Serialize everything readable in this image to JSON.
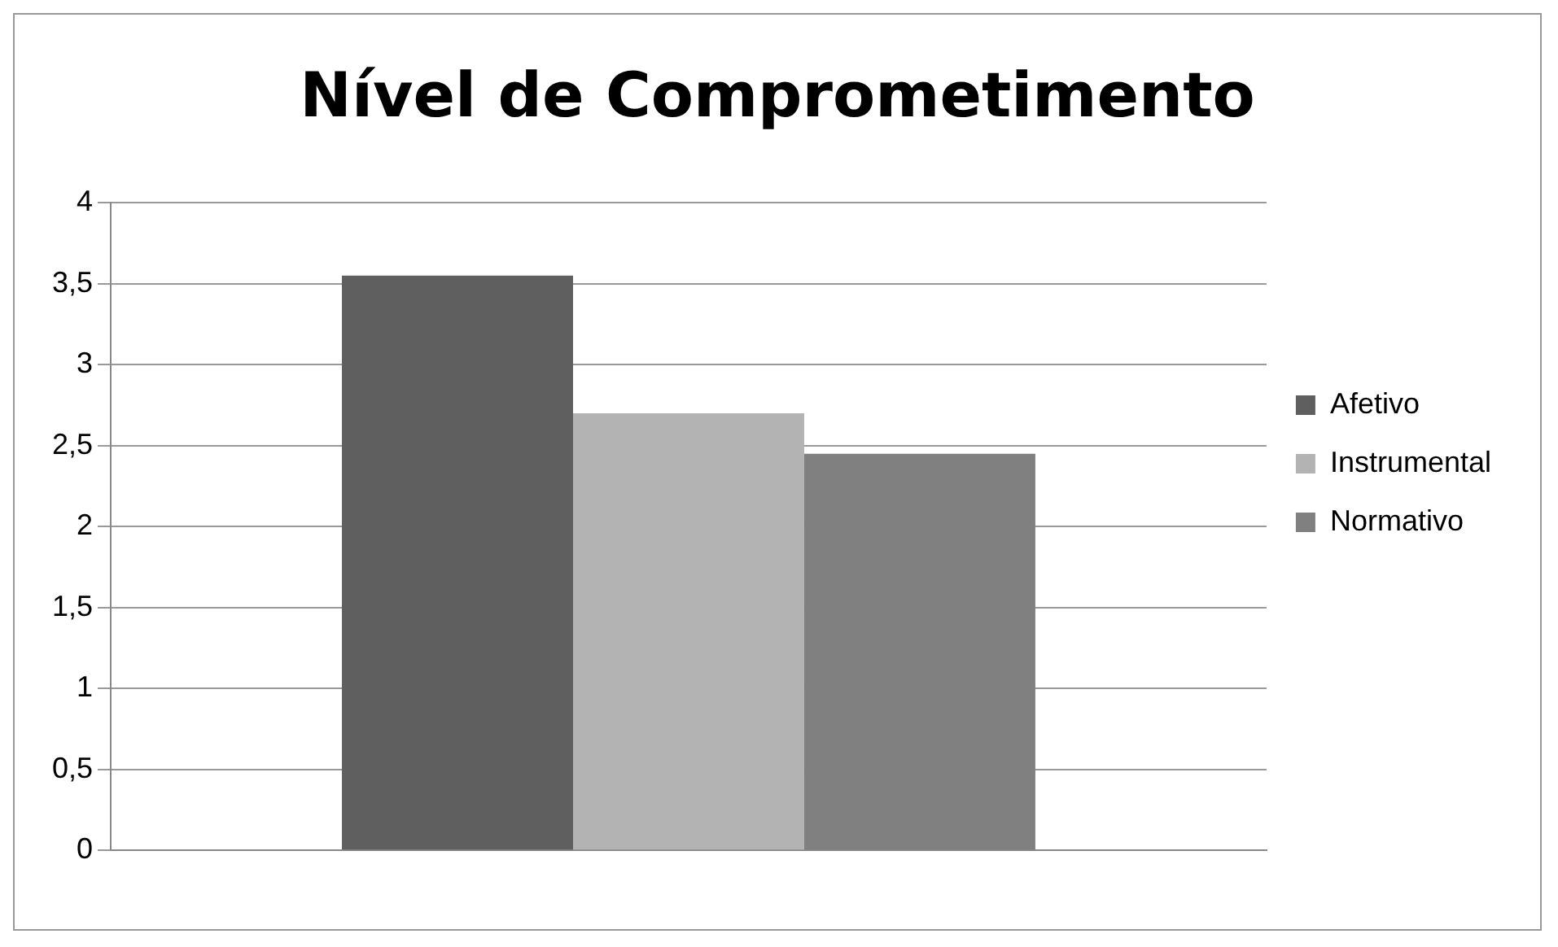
{
  "chart_data": {
    "type": "bar",
    "title": "Nível de Comprometimento",
    "categories": [
      null
    ],
    "series": [
      {
        "name": "Afetivo",
        "color": "#5f5f5f",
        "values": [
          3.55
        ]
      },
      {
        "name": "Instrumental",
        "color": "#b3b3b3",
        "values": [
          2.7
        ]
      },
      {
        "name": "Normativo",
        "color": "#808080",
        "values": [
          2.45
        ]
      }
    ],
    "ylim": [
      0,
      4
    ],
    "yticks": [
      0,
      {
        "value": 0.5,
        "label": "0,5"
      },
      1,
      {
        "value": 1.5,
        "label": "1,5"
      },
      2,
      {
        "value": 2.5,
        "label": "2,5"
      },
      3,
      {
        "value": 3.5,
        "label": "3,5"
      },
      4
    ],
    "grid": "y",
    "legend": "right"
  }
}
